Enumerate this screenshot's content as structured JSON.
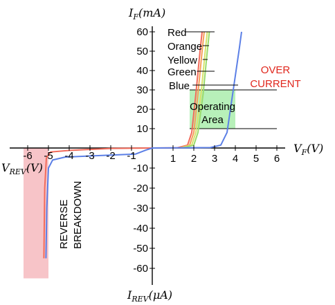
{
  "chart_data": {
    "type": "line",
    "title": "",
    "xlabel": "V_F (V)",
    "xlabel_neg": "V_REV (V)",
    "ylabel": "I_F (mA)",
    "ylabel_neg": "I_REV (μA)",
    "xlim": [
      -6.5,
      6.5
    ],
    "ylim_pos": [
      0,
      60
    ],
    "ylim_neg": [
      -60,
      0
    ],
    "x_ticks": [
      -6,
      -5,
      -4,
      -3,
      -2,
      -1,
      1,
      2,
      3,
      4,
      5,
      6
    ],
    "x_tick_labels": [
      "-6",
      "-5",
      "-4",
      "-3",
      "-2",
      "-1",
      "1",
      "2",
      "3",
      "4",
      "5",
      "6"
    ],
    "y_ticks_pos": [
      10,
      20,
      30,
      40,
      50,
      60
    ],
    "y_tick_labels_pos": [
      "10",
      "20",
      "30",
      "40",
      "50",
      "60"
    ],
    "y_ticks_neg": [
      -10,
      -20,
      -30,
      -40,
      -50,
      -60
    ],
    "y_tick_labels_neg": [
      "-10",
      "-20",
      "-30",
      "-40",
      "-50",
      "-60"
    ],
    "series": [
      {
        "name": "Red",
        "color": "#f26b5b",
        "forward": [
          [
            0,
            0
          ],
          [
            1.2,
            0.1
          ],
          [
            1.7,
            1.5
          ],
          [
            1.9,
            8
          ],
          [
            2.1,
            28
          ],
          [
            2.3,
            50
          ],
          [
            2.4,
            60
          ]
        ],
        "reverse": [
          [
            0,
            0
          ],
          [
            -2,
            -0.2
          ],
          [
            -4,
            -1.2
          ],
          [
            -4.9,
            -2
          ],
          [
            -5.1,
            -5
          ],
          [
            -5.18,
            -20
          ],
          [
            -5.22,
            -55
          ]
        ]
      },
      {
        "name": "Orange",
        "color": "#f5a05a",
        "forward": [
          [
            1.3,
            0.1
          ],
          [
            1.8,
            1.5
          ],
          [
            2.0,
            8
          ],
          [
            2.2,
            28
          ],
          [
            2.4,
            50
          ],
          [
            2.5,
            60
          ]
        ]
      },
      {
        "name": "Yellow",
        "color": "#d8e26a",
        "forward": [
          [
            1.4,
            0.1
          ],
          [
            1.9,
            1.5
          ],
          [
            2.1,
            8
          ],
          [
            2.35,
            28
          ],
          [
            2.55,
            50
          ],
          [
            2.65,
            60
          ]
        ]
      },
      {
        "name": "Green",
        "color": "#9bdb6c",
        "forward": [
          [
            1.5,
            0.1
          ],
          [
            2.0,
            1.5
          ],
          [
            2.2,
            8
          ],
          [
            2.45,
            28
          ],
          [
            2.65,
            50
          ],
          [
            2.75,
            60
          ]
        ]
      },
      {
        "name": "Blue",
        "color": "#5b7fe6",
        "forward": [
          [
            0,
            0
          ],
          [
            2.8,
            0.2
          ],
          [
            3.3,
            1.5
          ],
          [
            3.6,
            8
          ],
          [
            3.9,
            30
          ],
          [
            4.2,
            52
          ],
          [
            4.3,
            60
          ]
        ],
        "reverse": [
          [
            0,
            0
          ],
          [
            -0.3,
            -1
          ],
          [
            -0.8,
            -3
          ],
          [
            -2,
            -3.5
          ],
          [
            -4.2,
            -4.5
          ],
          [
            -4.8,
            -6
          ],
          [
            -5.0,
            -10
          ],
          [
            -5.08,
            -30
          ],
          [
            -5.12,
            -55
          ]
        ]
      }
    ],
    "regions": [
      {
        "label": "Operating Area",
        "x": [
          1.8,
          4.0
        ],
        "y": [
          10,
          30
        ],
        "color": "#b7f0b9"
      },
      {
        "label": "REVERSE BREAKDOWN",
        "x": [
          -6.2,
          -5.0
        ],
        "y": [
          -65,
          0
        ],
        "color": "#f7c4c8"
      }
    ],
    "over_current": {
      "label": "OVER CURRENT",
      "color": "#e0261c",
      "y_lines": [
        30,
        10
      ],
      "x_end": 6.0
    }
  }
}
